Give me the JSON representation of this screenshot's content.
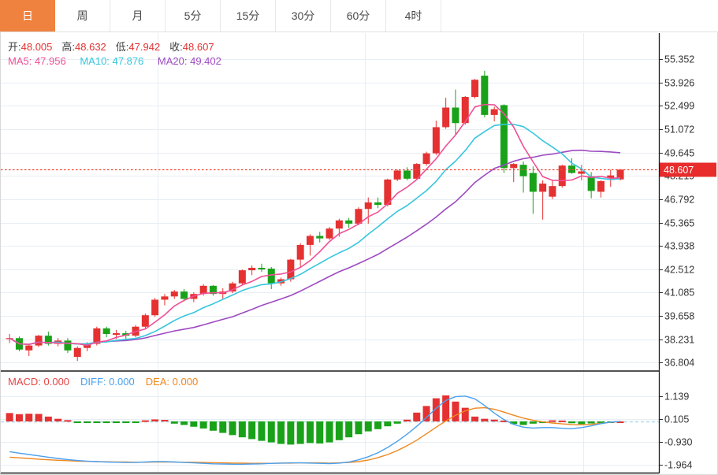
{
  "tabs": {
    "items": [
      {
        "label": "日",
        "active": true
      },
      {
        "label": "周",
        "active": false
      },
      {
        "label": "月",
        "active": false
      },
      {
        "label": "5分",
        "active": false
      },
      {
        "label": "15分",
        "active": false
      },
      {
        "label": "30分",
        "active": false
      },
      {
        "label": "60分",
        "active": false
      },
      {
        "label": "4时",
        "active": false
      }
    ]
  },
  "legend_ohlc": {
    "items": [
      {
        "label": "开:",
        "value": "48.005"
      },
      {
        "label": "高:",
        "value": "48.632"
      },
      {
        "label": "低:",
        "value": "47.942"
      },
      {
        "label": "收:",
        "value": "48.607"
      }
    ]
  },
  "legend_ma": {
    "ma5": "MA5: 47.956",
    "ma10": "MA10: 47.876",
    "ma20": "MA20: 49.402"
  },
  "legend_macd": {
    "items": [
      {
        "key": "macd",
        "label": "MACD:",
        "value": "0.000"
      },
      {
        "key": "diff",
        "label": "DIFF:",
        "value": "0.000"
      },
      {
        "key": "dea",
        "label": "DEA:",
        "value": "0.000"
      }
    ]
  },
  "price_axis": {
    "labels": [
      "55.352",
      "53.926",
      "52.499",
      "51.072",
      "49.645",
      "48.219",
      "46.792",
      "45.365",
      "43.938",
      "42.512",
      "41.085",
      "39.658",
      "38.231",
      "36.804"
    ],
    "current_badge": "48.607"
  },
  "macd_axis": {
    "labels": [
      "1.139",
      "0.105",
      "-0.930",
      "-1.964"
    ]
  },
  "colors": {
    "up": "#e53131",
    "down": "#19a219",
    "ma5": "#ef4f96",
    "ma10": "#36c6dd",
    "ma20": "#9e4ac2",
    "diff": "#4aa0ee",
    "dea": "#f0871e",
    "grid": "#e8eef4",
    "zero_dotted": "#aadcec",
    "current_line": "#f2453a",
    "badge_bg": "#e82c2c",
    "axis_text": "#333333",
    "active_tab": "#f0823f"
  },
  "chart_data": {
    "type": "candlestick_with_macd",
    "title": "",
    "current_price": 48.607,
    "price_axis_ticks": [
      55.352,
      53.926,
      52.499,
      51.072,
      49.645,
      48.219,
      46.792,
      45.365,
      43.938,
      42.512,
      41.085,
      39.658,
      38.231,
      36.804
    ],
    "macd_axis_ticks": [
      1.139,
      0.105,
      -0.93,
      -1.964
    ],
    "last_bar": {
      "open": 48.005,
      "high": 48.632,
      "low": 47.942,
      "close": 48.607
    },
    "ma_periods": [
      5,
      10,
      20
    ],
    "ma_legend_values": {
      "ma5": 47.956,
      "ma10": 47.876,
      "ma20": 49.402
    },
    "candles": [
      [
        38.25,
        38.55,
        38.0,
        38.3
      ],
      [
        38.3,
        38.4,
        37.5,
        37.6
      ],
      [
        37.55,
        37.95,
        37.2,
        37.85
      ],
      [
        37.85,
        38.5,
        37.75,
        38.45
      ],
      [
        38.45,
        38.7,
        37.85,
        37.95
      ],
      [
        37.95,
        38.3,
        37.8,
        38.15
      ],
      [
        38.15,
        38.3,
        37.4,
        37.55
      ],
      [
        37.15,
        37.8,
        36.9,
        37.7
      ],
      [
        37.7,
        38.05,
        37.5,
        37.95
      ],
      [
        37.95,
        39.0,
        37.85,
        38.9
      ],
      [
        38.9,
        39.0,
        38.35,
        38.55
      ],
      [
        38.5,
        38.8,
        38.25,
        38.6
      ],
      [
        38.6,
        38.75,
        38.2,
        38.45
      ],
      [
        38.45,
        39.1,
        38.35,
        39.0
      ],
      [
        39.0,
        39.8,
        38.9,
        39.7
      ],
      [
        39.7,
        40.75,
        39.6,
        40.65
      ],
      [
        40.65,
        41.0,
        40.3,
        40.85
      ],
      [
        40.85,
        41.25,
        40.7,
        41.15
      ],
      [
        41.15,
        41.3,
        40.55,
        40.7
      ],
      [
        40.7,
        41.1,
        40.5,
        41.0
      ],
      [
        41.0,
        41.6,
        40.9,
        41.5
      ],
      [
        41.5,
        41.55,
        40.9,
        41.0
      ],
      [
        41.0,
        41.35,
        40.7,
        41.15
      ],
      [
        41.15,
        41.75,
        41.05,
        41.65
      ],
      [
        41.65,
        42.5,
        41.55,
        42.45
      ],
      [
        42.45,
        42.75,
        42.15,
        42.6
      ],
      [
        42.6,
        42.85,
        42.35,
        42.5
      ],
      [
        42.55,
        42.65,
        41.3,
        41.65
      ],
      [
        41.65,
        42.0,
        41.5,
        41.9
      ],
      [
        41.9,
        43.15,
        41.75,
        43.1
      ],
      [
        43.1,
        44.1,
        42.6,
        44.0
      ],
      [
        44.0,
        44.65,
        43.35,
        44.55
      ],
      [
        44.55,
        44.8,
        44.15,
        44.4
      ],
      [
        44.4,
        45.1,
        44.3,
        45.0
      ],
      [
        45.0,
        45.6,
        44.5,
        45.5
      ],
      [
        45.5,
        45.65,
        45.05,
        45.3
      ],
      [
        45.3,
        46.3,
        45.2,
        46.2
      ],
      [
        46.2,
        46.9,
        45.3,
        46.6
      ],
      [
        46.6,
        46.9,
        46.25,
        46.45
      ],
      [
        46.45,
        48.05,
        46.35,
        48.0
      ],
      [
        48.0,
        48.6,
        47.9,
        48.55
      ],
      [
        48.55,
        48.75,
        47.95,
        48.05
      ],
      [
        48.05,
        49.0,
        48.0,
        48.95
      ],
      [
        48.95,
        49.7,
        48.85,
        49.6
      ],
      [
        49.6,
        51.6,
        49.5,
        51.2
      ],
      [
        51.2,
        53.0,
        51.1,
        52.4
      ],
      [
        52.4,
        53.5,
        50.75,
        51.45
      ],
      [
        51.45,
        53.1,
        51.35,
        53.05
      ],
      [
        53.05,
        54.15,
        52.95,
        54.1
      ],
      [
        54.35,
        54.65,
        51.8,
        51.95
      ],
      [
        51.95,
        52.45,
        51.55,
        52.3
      ],
      [
        52.55,
        52.6,
        48.4,
        48.7
      ],
      [
        48.7,
        49.0,
        47.85,
        48.95
      ],
      [
        48.9,
        49.1,
        47.2,
        48.2
      ],
      [
        48.4,
        48.8,
        45.9,
        47.25
      ],
      [
        47.25,
        47.95,
        45.55,
        47.75
      ],
      [
        46.95,
        47.95,
        46.8,
        47.6
      ],
      [
        47.6,
        48.9,
        47.5,
        48.85
      ],
      [
        48.85,
        49.3,
        48.35,
        48.4
      ],
      [
        48.35,
        48.9,
        47.95,
        48.5
      ],
      [
        48.2,
        48.45,
        46.85,
        47.3
      ],
      [
        47.25,
        47.95,
        46.9,
        47.9
      ],
      [
        48.1,
        48.6,
        47.55,
        48.25
      ],
      [
        48.005,
        48.632,
        47.942,
        48.607
      ]
    ],
    "macd": {
      "hist": [
        0.38,
        0.33,
        0.35,
        0.34,
        0.22,
        0.12,
        0.06,
        -0.03,
        -0.02,
        -0.03,
        -0.05,
        -0.04,
        -0.03,
        -0.02,
        0.05,
        0.09,
        0.07,
        -0.1,
        -0.16,
        -0.24,
        -0.32,
        -0.42,
        -0.52,
        -0.62,
        -0.72,
        -0.8,
        -0.88,
        -0.95,
        -1.02,
        -1.05,
        -1.02,
        -0.98,
        -1.0,
        -0.95,
        -0.85,
        -0.72,
        -0.58,
        -0.45,
        -0.35,
        -0.22,
        -0.1,
        0.08,
        0.4,
        0.7,
        1.05,
        1.18,
        0.9,
        0.62,
        0.22,
        0.12,
        0.08,
        0.04,
        -0.12,
        -0.16,
        -0.1,
        -0.06,
        0.05,
        0.04,
        -0.08,
        -0.12,
        -0.09,
        -0.05,
        -0.02,
        0.0
      ],
      "diff": [
        -1.37,
        -1.44,
        -1.5,
        -1.56,
        -1.62,
        -1.68,
        -1.73,
        -1.77,
        -1.8,
        -1.82,
        -1.84,
        -1.85,
        -1.86,
        -1.86,
        -1.84,
        -1.82,
        -1.82,
        -1.84,
        -1.86,
        -1.88,
        -1.9,
        -1.92,
        -1.93,
        -1.94,
        -1.94,
        -1.93,
        -1.92,
        -1.9,
        -1.89,
        -1.88,
        -1.88,
        -1.89,
        -1.9,
        -1.91,
        -1.89,
        -1.84,
        -1.74,
        -1.6,
        -1.42,
        -1.18,
        -0.9,
        -0.58,
        -0.22,
        0.18,
        0.6,
        0.95,
        1.12,
        1.15,
        1.02,
        0.72,
        0.38,
        0.08,
        -0.14,
        -0.26,
        -0.3,
        -0.28,
        -0.28,
        -0.31,
        -0.33,
        -0.28,
        -0.2,
        -0.1,
        -0.03,
        0.0
      ],
      "dea": [
        -1.62,
        -1.65,
        -1.68,
        -1.71,
        -1.74,
        -1.76,
        -1.78,
        -1.8,
        -1.81,
        -1.82,
        -1.83,
        -1.84,
        -1.84,
        -1.85,
        -1.85,
        -1.84,
        -1.84,
        -1.84,
        -1.85,
        -1.85,
        -1.86,
        -1.87,
        -1.88,
        -1.89,
        -1.89,
        -1.9,
        -1.9,
        -1.9,
        -1.89,
        -1.89,
        -1.88,
        -1.88,
        -1.88,
        -1.89,
        -1.88,
        -1.86,
        -1.82,
        -1.75,
        -1.64,
        -1.5,
        -1.32,
        -1.1,
        -0.85,
        -0.56,
        -0.26,
        0.02,
        0.28,
        0.48,
        0.6,
        0.62,
        0.55,
        0.42,
        0.28,
        0.15,
        0.05,
        -0.02,
        -0.07,
        -0.11,
        -0.14,
        -0.15,
        -0.13,
        -0.09,
        -0.04,
        0.0
      ]
    }
  }
}
